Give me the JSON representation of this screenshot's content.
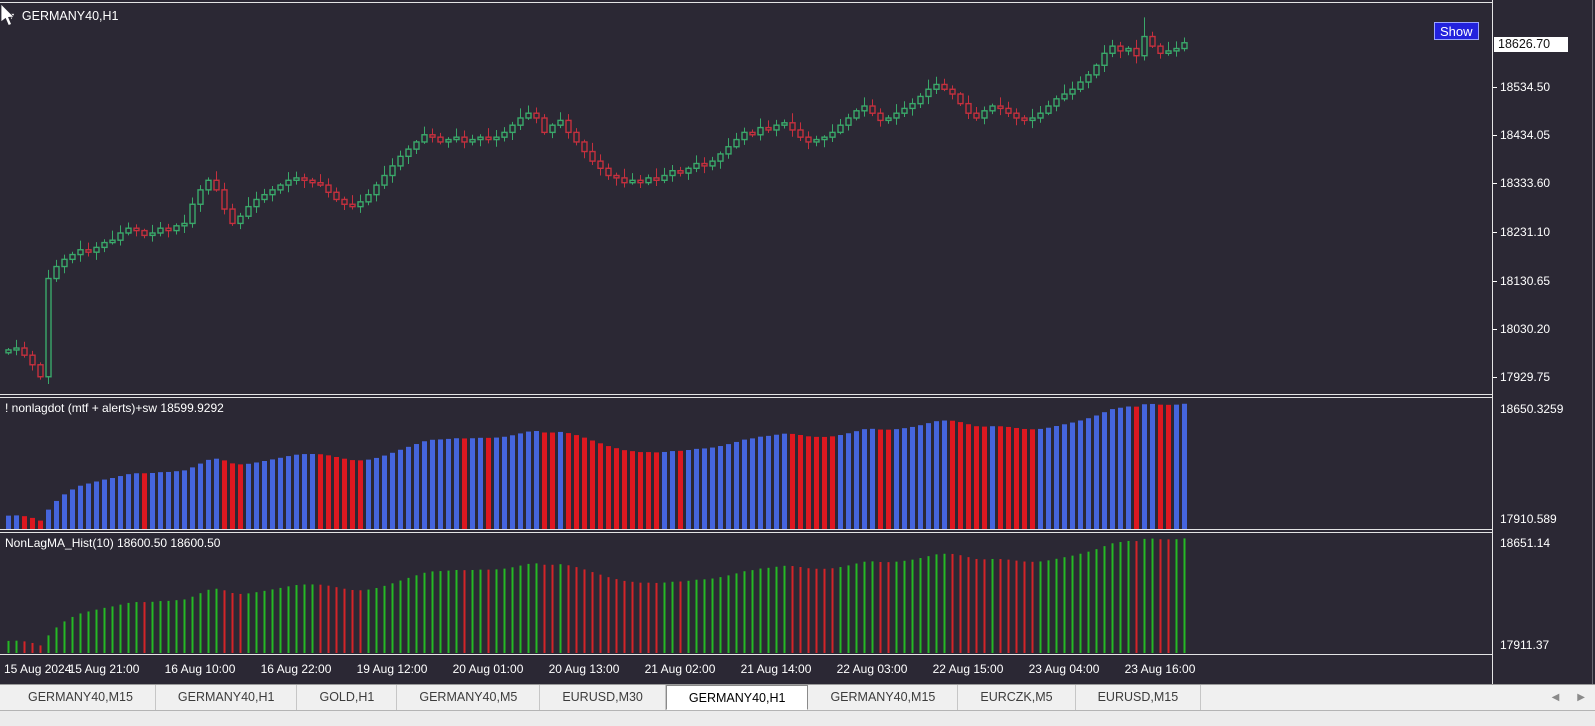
{
  "window": {
    "symbol": "GERMANY40,H1"
  },
  "main_chart": {
    "symbol_dropdown_label": "GERMANY40,H1",
    "show_button_label": "Show",
    "current_price_label": "18626.70"
  },
  "indicator1": {
    "label": "! nonlagdot (mtf + alerts)+sw 18599.9292",
    "axis_max": "18650.3259",
    "axis_min": "17910.589"
  },
  "indicator2": {
    "label": "NonLagMA_Hist(10) 18600.50 18600.50",
    "axis_max": "18651.14",
    "axis_min": "17911.37"
  },
  "price_axis": {
    "ticks": [
      "18534.50",
      "18434.05",
      "18333.60",
      "18231.10",
      "18130.65",
      "18030.20",
      "17929.75"
    ]
  },
  "time_axis": {
    "labels": [
      "15 Aug 2024",
      "15 Aug 21:00",
      "16 Aug 10:00",
      "16 Aug 22:00",
      "19 Aug 12:00",
      "20 Aug 01:00",
      "20 Aug 13:00",
      "21 Aug 02:00",
      "21 Aug 14:00",
      "22 Aug 03:00",
      "22 Aug 15:00",
      "23 Aug 04:00",
      "23 Aug 16:00"
    ]
  },
  "tabs": {
    "items": [
      {
        "label": "GERMANY40,M15",
        "active": false
      },
      {
        "label": "GERMANY40,H1",
        "active": false
      },
      {
        "label": "GOLD,H1",
        "active": false
      },
      {
        "label": "GERMANY40,M5",
        "active": false
      },
      {
        "label": "EURUSD,M30",
        "active": false
      },
      {
        "label": "GERMANY40,H1",
        "active": true
      },
      {
        "label": "GERMANY40,M15",
        "active": false
      },
      {
        "label": "EURCZK,M5",
        "active": false
      },
      {
        "label": "EURUSD,M15",
        "active": false
      }
    ],
    "scroll_left_icon": "◀",
    "scroll_right_icon": "▶"
  },
  "colors": {
    "background": "#2b2834",
    "axis_text": "#ffffff",
    "candle_up": "#3aa86a",
    "candle_down": "#c5303e",
    "hist1_up": "#4565dd",
    "hist1_down": "#dd1820",
    "hist2_up": "#25b825",
    "hist2_down": "#d42428",
    "show_button_bg": "#2222dd",
    "current_price_box_bg": "#ffffff"
  },
  "chart_data": [
    {
      "type": "candlestick",
      "title": "GERMANY40,H1",
      "ylim": [
        17894,
        18710
      ],
      "y_ticks": [
        18534.5,
        18434.05,
        18333.6,
        18231.1,
        18130.65,
        18030.2,
        17929.75
      ],
      "current_price": 18626.7,
      "bar_count": 148,
      "open_first": 17980,
      "close": [
        17986,
        17990,
        17975,
        17955,
        17930,
        18135,
        18160,
        18175,
        18185,
        18195,
        18190,
        18200,
        18210,
        18215,
        18230,
        18240,
        18235,
        18225,
        18230,
        18240,
        18235,
        18245,
        18250,
        18290,
        18320,
        18340,
        18320,
        18280,
        18250,
        18265,
        18285,
        18300,
        18310,
        18320,
        18330,
        18340,
        18345,
        18340,
        18335,
        18330,
        18315,
        18300,
        18290,
        18285,
        18295,
        18310,
        18330,
        18350,
        18370,
        18390,
        18405,
        18420,
        18435,
        18430,
        18420,
        18425,
        18430,
        18420,
        18425,
        18430,
        18425,
        18430,
        18440,
        18455,
        18470,
        18480,
        18470,
        18440,
        18455,
        18465,
        18440,
        18420,
        18400,
        18380,
        18365,
        18350,
        18345,
        18335,
        18340,
        18335,
        18345,
        18340,
        18350,
        18360,
        18355,
        18365,
        18375,
        18370,
        18380,
        18395,
        18410,
        18425,
        18440,
        18435,
        18450,
        18445,
        18455,
        18460,
        18445,
        18430,
        18420,
        18425,
        18430,
        18440,
        18455,
        18470,
        18485,
        18495,
        18480,
        18465,
        18470,
        18480,
        18490,
        18500,
        18515,
        18530,
        18540,
        18530,
        18520,
        18500,
        18480,
        18470,
        18485,
        18495,
        18490,
        18480,
        18470,
        18465,
        18470,
        18480,
        18495,
        18510,
        18520,
        18530,
        18545,
        18560,
        18580,
        18605,
        18620,
        18610,
        18615,
        18600,
        18640,
        18620,
        18605,
        18610,
        18615,
        18627
      ],
      "wick_overrides": {
        "5": {
          "low": 17915
        },
        "142": {
          "high": 18680
        }
      }
    },
    {
      "type": "bar",
      "title": "! nonlagdot (mtf + alerts)+sw",
      "last_value": 18599.9292,
      "ylim": [
        17910.589,
        18650.3259
      ],
      "series_source": "smoothed_main_close",
      "smoothing_alpha": 0.35,
      "legend": [
        "trend-up (blue)",
        "trend-down (red)"
      ]
    },
    {
      "type": "bar",
      "title": "NonLagMA_Hist(10)",
      "last_values": [
        18600.5,
        18600.5
      ],
      "ylim": [
        17911.37,
        18651.14
      ],
      "series_source": "smoothed_main_close",
      "smoothing_alpha": 0.35,
      "legend": [
        "trend-up (green)",
        "trend-down (red)"
      ]
    }
  ]
}
